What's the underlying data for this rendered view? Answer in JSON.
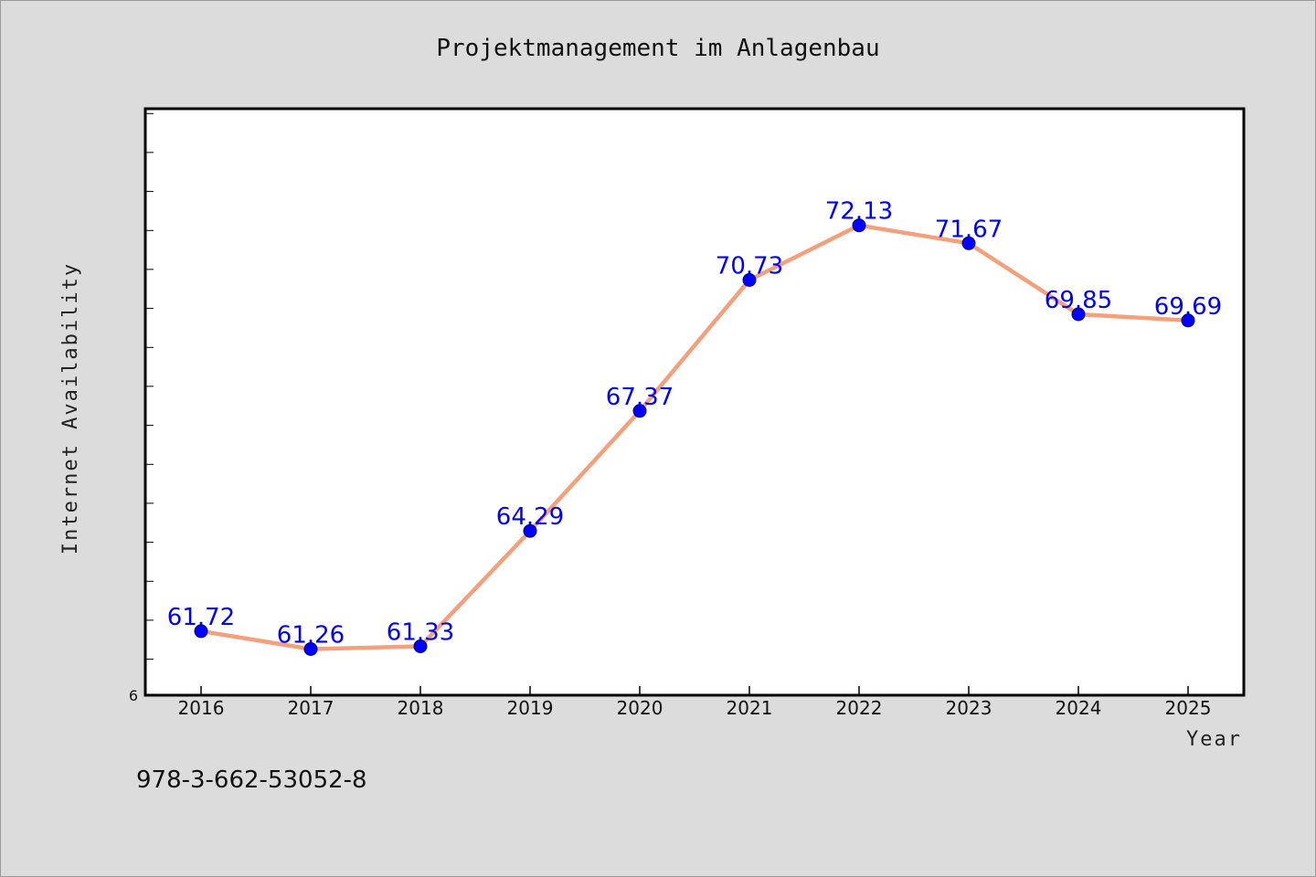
{
  "footer": {
    "isbn": "978-3-662-53052-8"
  },
  "chart_data": {
    "type": "line",
    "title": "Projektmanagement im Anlagenbau",
    "xlabel": "Year",
    "ylabel": "Internet Availability",
    "x": [
      "2016",
      "2017",
      "2018",
      "2019",
      "2020",
      "2021",
      "2022",
      "2023",
      "2024",
      "2025"
    ],
    "series": [
      {
        "values": [
          61.72,
          61.26,
          61.33,
          64.29,
          67.37,
          70.73,
          72.13,
          71.67,
          69.85,
          69.69
        ]
      }
    ],
    "data_labels": [
      "61.72",
      "61.26",
      "61.33",
      "64.29",
      "67.37",
      "70.73",
      "72.13",
      "71.67",
      "69.85",
      "69.69"
    ],
    "y_axis_min_label": "6",
    "ylim": [
      60.1,
      75.1
    ],
    "y_minor_tick_step": 1,
    "grid": false,
    "legend": "none",
    "colors": {
      "line": "#f4a07c",
      "marker": "#0000ff",
      "data_label": "#0000ff",
      "background": "#dcdcdc",
      "plot_background": "#ffffff"
    }
  }
}
